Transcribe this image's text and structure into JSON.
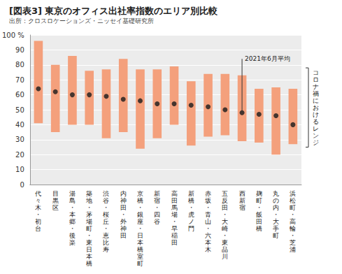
{
  "chart_data": {
    "type": "range_bar",
    "title": "[図表3] 東京のオフィス出社率指数のエリア別比較",
    "subtitle": "出所：クロスロケーションズ・ニッセイ基礎研究所",
    "categories": [
      "代々木・初台",
      "目黒区",
      "湯島・本郷・後楽",
      "築地・茅場町・東日本橋",
      "渋谷・桜丘・恵比寿",
      "内神田・外神田",
      "京橋・銀座・日本橋室町",
      "新宿・四谷",
      "高田馬場・早稲田",
      "新橋・虎ノ門",
      "赤坂・青山・六本木",
      "五反田・大崎・東品川",
      "西新宿",
      "麹町・飯田橋",
      "丸の内・大手町",
      "浜松町・高輪・芝浦"
    ],
    "series": [
      {
        "name": "コロナ禍におけるレンジ",
        "type": "range",
        "color": "#f4a07c",
        "low": [
          41,
          35,
          40,
          40,
          31,
          35,
          24,
          31,
          40,
          26,
          32,
          33,
          29,
          28,
          20,
          27
        ],
        "high": [
          96,
          80,
          86,
          76,
          77,
          84,
          77,
          77,
          79,
          69,
          74,
          74,
          73,
          64,
          65,
          64
        ]
      },
      {
        "name": "2021年6月平均",
        "type": "scatter",
        "color": "#1a1a1a",
        "marker": "circle",
        "values": [
          64,
          62,
          60,
          60,
          59,
          57,
          56,
          54,
          54,
          53,
          52,
          50,
          48,
          47,
          46,
          40
        ]
      }
    ],
    "ylim": [
      0,
      100
    ],
    "yticks": [
      0,
      10,
      20,
      30,
      40,
      50,
      60,
      70,
      80,
      90,
      {
        "value": 100,
        "label": "100 %"
      }
    ],
    "grid": true
  }
}
